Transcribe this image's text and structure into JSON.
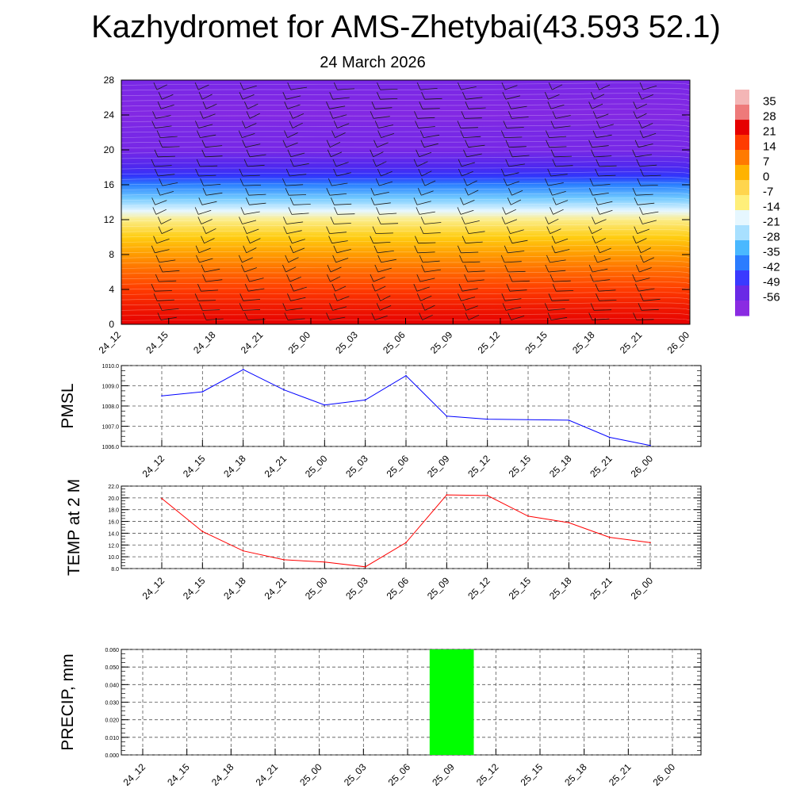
{
  "title": "Kazhydromet for AMS-Zhetybai(43.593 52.1)",
  "date": "24 March 2026",
  "chart_data": [
    {
      "type": "heatmap",
      "name": "temperature-profile",
      "x_ticks": [
        "24_12",
        "24_15",
        "24_18",
        "24_21",
        "25_00",
        "25_03",
        "25_06",
        "25_09",
        "25_12",
        "25_15",
        "25_18",
        "25_21",
        "26_00"
      ],
      "y_ticks": [
        "0",
        "4",
        "8",
        "12",
        "16",
        "20",
        "24",
        "28"
      ],
      "ylim": [
        0,
        28
      ],
      "colorbar_labels": [
        "35",
        "28",
        "21",
        "14",
        "7",
        "0",
        "-7",
        "-14",
        "-21",
        "-28",
        "-35",
        "-42",
        "-49",
        "-56"
      ],
      "colorbar_colors": [
        "#f4b6b6",
        "#ee7a7a",
        "#e60000",
        "#ff3c00",
        "#ff7a00",
        "#ffb300",
        "#ffd54d",
        "#ffef7a",
        "#e6f7ff",
        "#a8e0ff",
        "#4ab8ff",
        "#2b7cff",
        "#3a3aff",
        "#6a2ae6",
        "#8a2be2"
      ],
      "profile": [
        {
          "z": 0,
          "temp": 21
        },
        {
          "z": 2,
          "temp": 18
        },
        {
          "z": 4,
          "temp": 14
        },
        {
          "z": 6,
          "temp": 9
        },
        {
          "z": 8,
          "temp": 4
        },
        {
          "z": 10,
          "temp": -1
        },
        {
          "z": 12,
          "temp": -8
        },
        {
          "z": 13,
          "temp": -14
        },
        {
          "z": 14.5,
          "temp": -24
        },
        {
          "z": 16,
          "temp": -34
        },
        {
          "z": 17,
          "temp": -44
        },
        {
          "z": 18,
          "temp": -50
        },
        {
          "z": 20,
          "temp": -56
        },
        {
          "z": 22,
          "temp": -56
        },
        {
          "z": 24,
          "temp": -60
        },
        {
          "z": 26,
          "temp": -58
        },
        {
          "z": 28,
          "temp": -56
        }
      ]
    },
    {
      "type": "line",
      "name": "pmsl",
      "ylabel": "PMSL",
      "categories": [
        "24_12",
        "24_15",
        "24_18",
        "24_21",
        "25_00",
        "25_03",
        "25_06",
        "25_09",
        "25_12",
        "25_15",
        "25_18",
        "25_21",
        "26_00"
      ],
      "values": [
        1008.5,
        1008.7,
        1009.8,
        1008.8,
        1008.05,
        1008.3,
        1009.5,
        1007.5,
        1007.35,
        1007.32,
        1007.3,
        1006.45,
        1006.05
      ],
      "ylim": [
        1006.0,
        1010.0
      ],
      "y_ticks": [
        "1006.0",
        "1007.0",
        "1008.0",
        "1009.0",
        "1010.0"
      ],
      "color": "#0000ff"
    },
    {
      "type": "line",
      "name": "temp-2m",
      "ylabel": "TEMP at 2 M",
      "categories": [
        "24_12",
        "24_15",
        "24_18",
        "24_21",
        "25_00",
        "25_03",
        "25_06",
        "25_09",
        "25_12",
        "25_15",
        "25_18",
        "25_21",
        "26_00"
      ],
      "values": [
        19.9,
        14.3,
        11.0,
        9.5,
        9.1,
        8.3,
        12.4,
        20.5,
        20.4,
        16.9,
        15.8,
        13.3,
        12.4
      ],
      "ylim": [
        8.0,
        22.0
      ],
      "y_ticks": [
        "8.0",
        "10.0",
        "12.0",
        "14.0",
        "16.0",
        "18.0",
        "20.0",
        "22.0"
      ],
      "color": "#ff0000"
    },
    {
      "type": "bar",
      "name": "precip",
      "ylabel": "PRECIP, mm",
      "categories": [
        "24_12",
        "24_15",
        "24_18",
        "24_21",
        "25_00",
        "25_03",
        "25_06",
        "25_09",
        "25_12",
        "25_15",
        "25_18",
        "25_21",
        "26_00"
      ],
      "values": [
        0,
        0,
        0,
        0,
        0,
        0,
        0,
        0.06,
        0,
        0,
        0,
        0,
        0
      ],
      "ylim": [
        0.0,
        0.06
      ],
      "y_ticks": [
        "0.000",
        "0.010",
        "0.020",
        "0.030",
        "0.040",
        "0.050",
        "0.060"
      ],
      "color": "#00ff00"
    }
  ]
}
